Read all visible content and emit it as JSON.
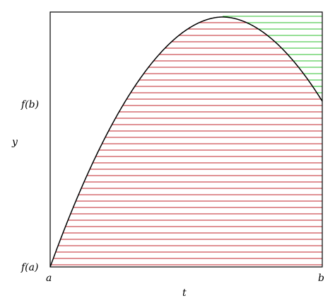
{
  "figure": {
    "y_axis_label": "y",
    "x_axis_label": "t",
    "y_ticks": {
      "fa": "f(a)",
      "fb": "f(b)"
    },
    "x_ticks": {
      "a": "a",
      "b": "b"
    },
    "colors": {
      "curve": "#000000",
      "frame": "#000000",
      "under_curve_lines": "#c0262b",
      "above_curve_lines": "#2cbf2c",
      "background": "#ffffff"
    },
    "hatch_line_count": 40,
    "curve_shape": "concave parabola-like arc rising from f(a) at a, peaking above f(b), descending to f(b) at b"
  }
}
